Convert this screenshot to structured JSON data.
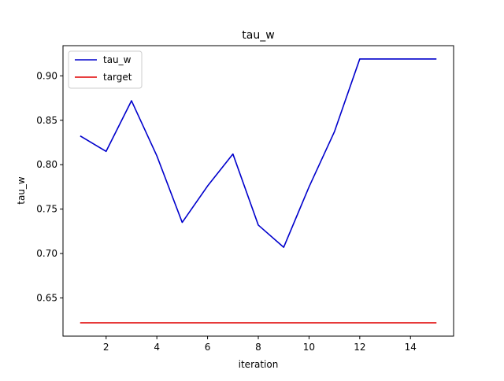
{
  "chart_data": {
    "type": "line",
    "title": "tau_w",
    "xlabel": "iteration",
    "ylabel": "tau_w",
    "x": [
      1,
      2,
      3,
      4,
      5,
      6,
      7,
      8,
      9,
      10,
      11,
      12,
      13,
      14,
      15
    ],
    "series": [
      {
        "name": "tau_w",
        "color": "#0000cc",
        "values": [
          0.832,
          0.815,
          0.872,
          0.81,
          0.735,
          0.776,
          0.812,
          0.732,
          0.707,
          0.775,
          0.837,
          0.919,
          0.919,
          0.919,
          0.919
        ]
      },
      {
        "name": "target",
        "color": "#e00000",
        "values": [
          0.622,
          0.622,
          0.622,
          0.622,
          0.622,
          0.622,
          0.622,
          0.622,
          0.622,
          0.622,
          0.622,
          0.622,
          0.622,
          0.622,
          0.622
        ]
      }
    ],
    "xlim": [
      0.3,
      15.7
    ],
    "ylim": [
      0.607,
      0.934
    ],
    "xticks": [
      2,
      4,
      6,
      8,
      10,
      12,
      14
    ],
    "yticks": [
      0.65,
      0.7,
      0.75,
      0.8,
      0.85,
      0.9
    ],
    "ytick_labels": [
      "0.65",
      "0.70",
      "0.75",
      "0.80",
      "0.85",
      "0.90"
    ],
    "grid": false,
    "legend_position": "top-left"
  }
}
